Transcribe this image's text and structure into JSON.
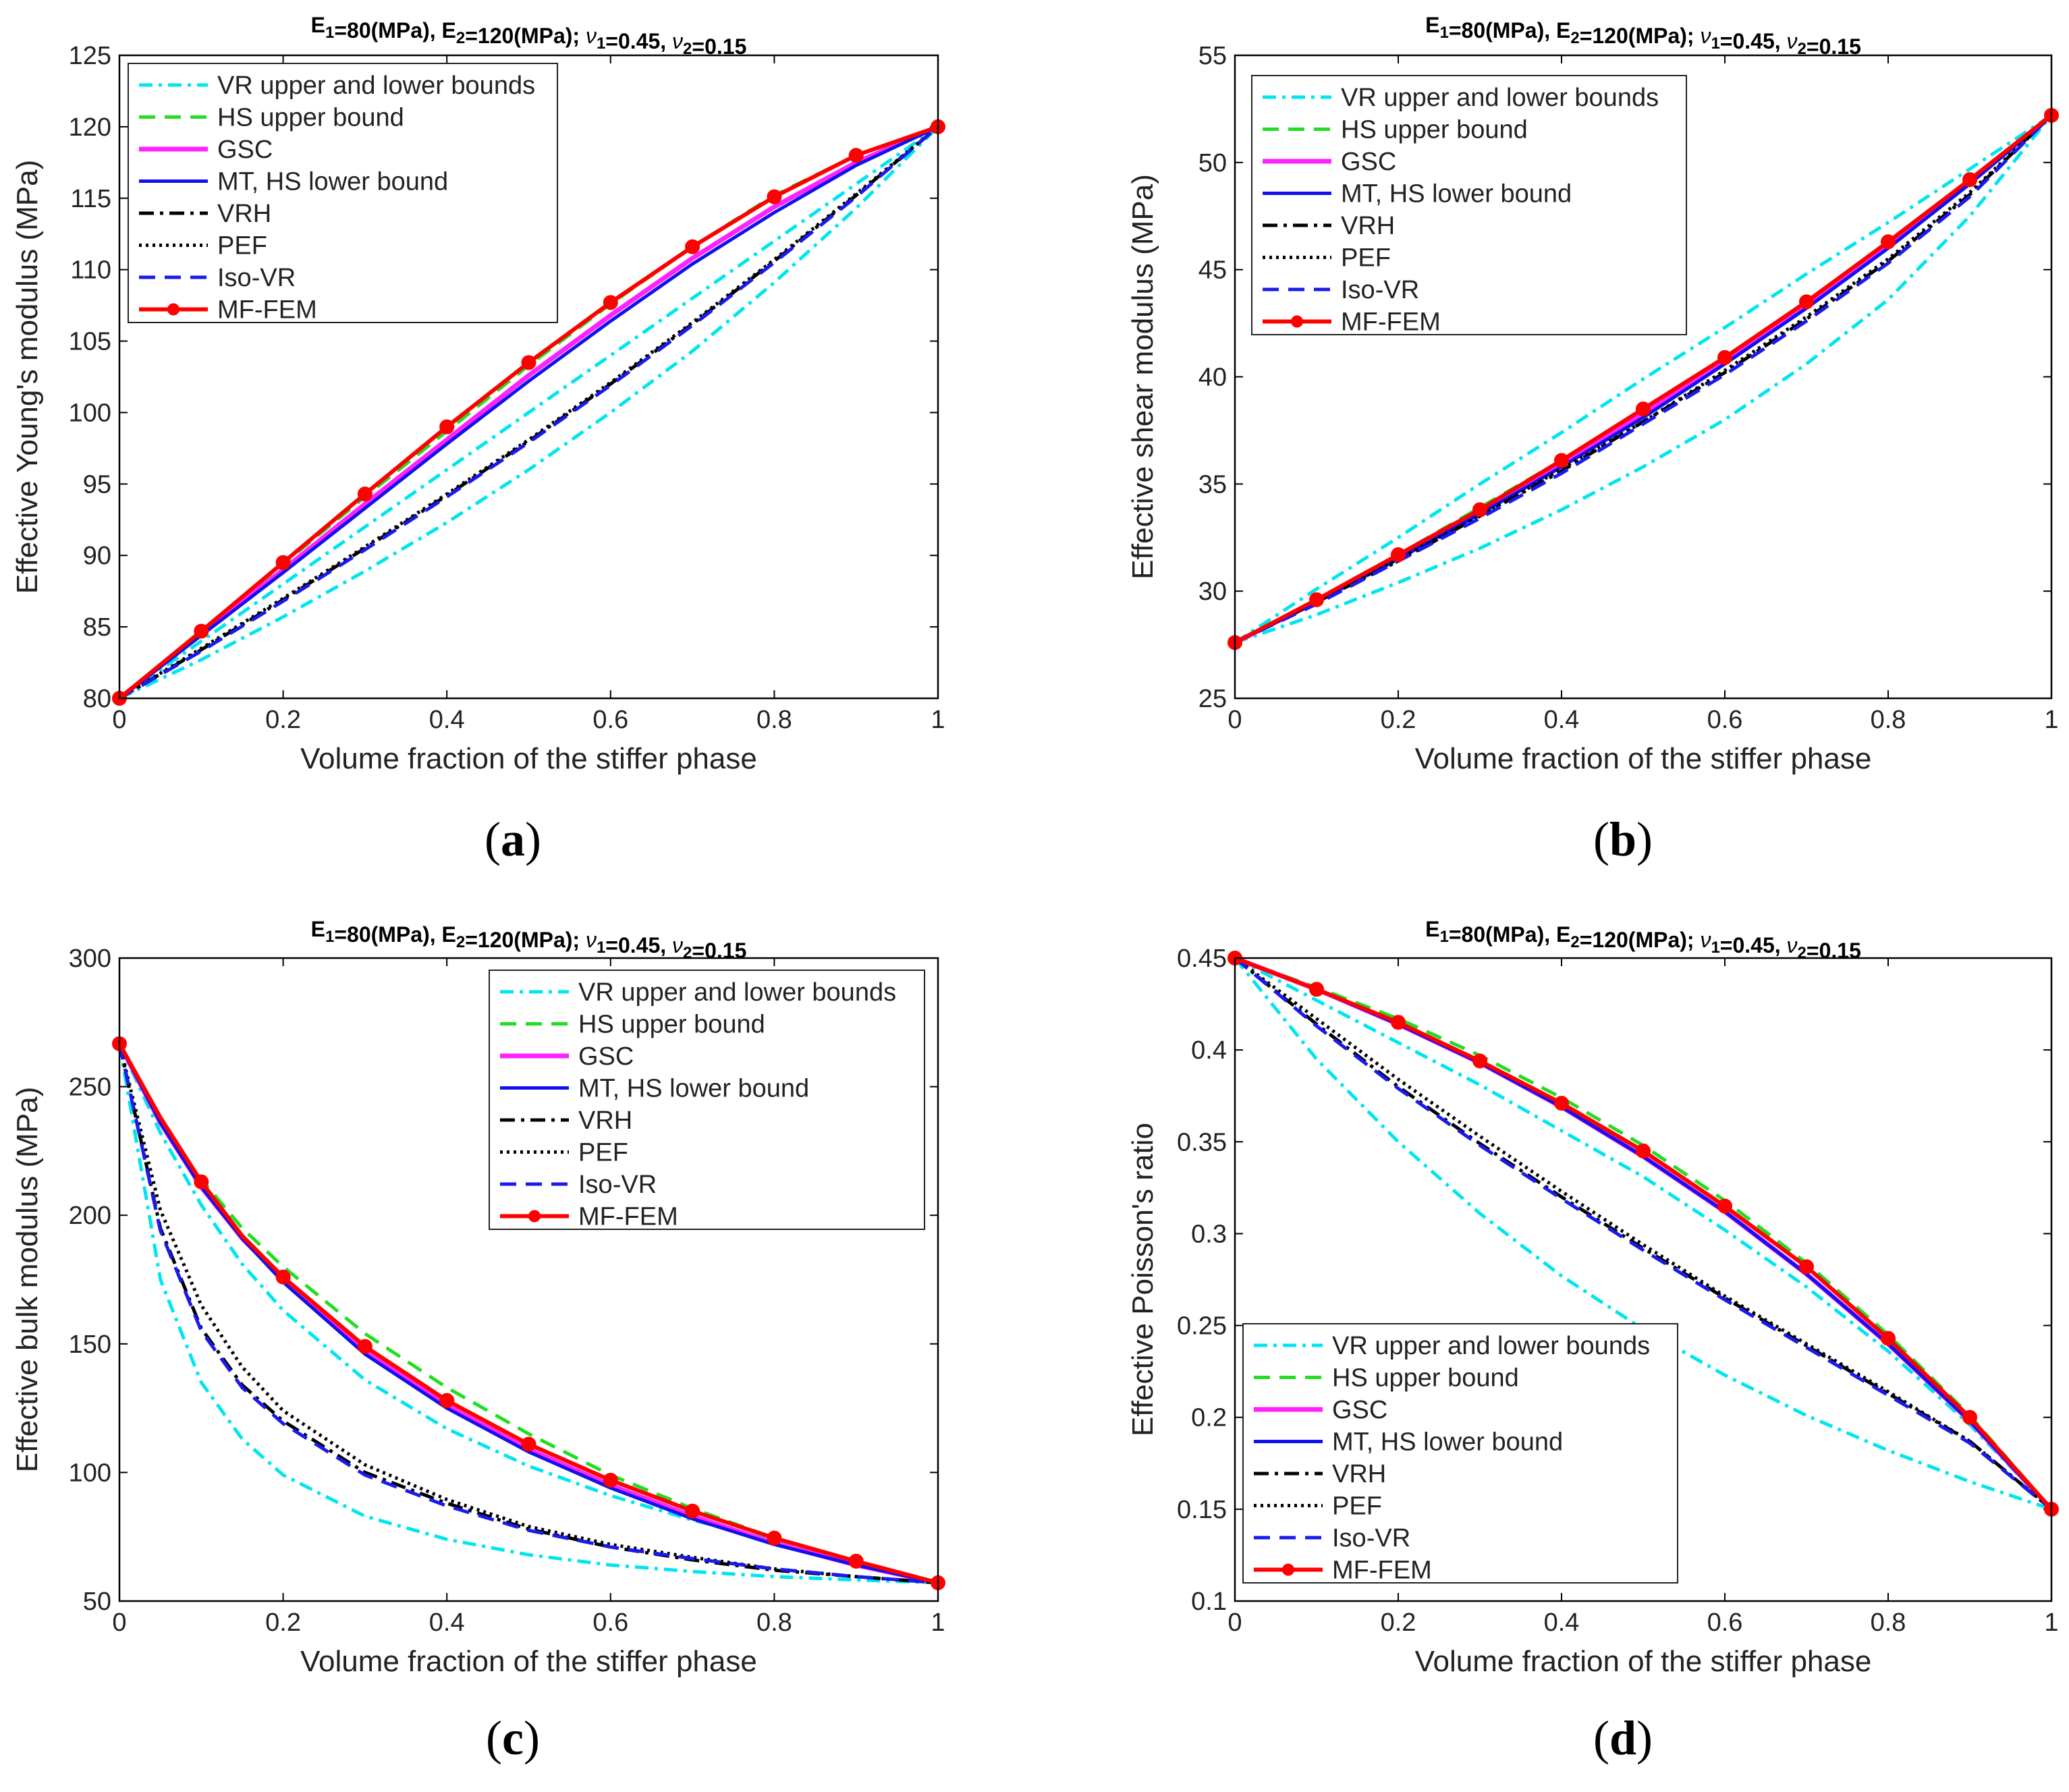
{
  "chart_data": [
    {
      "id": "a",
      "type": "line",
      "title": "E1=80(MPa), E2=120(MPa); ν1=0.45, ν2=0.15",
      "xlabel": "Volume fraction of the stiffer phase",
      "ylabel": "Effective Young's modulus (MPa)",
      "caption_letter": "a",
      "xlim": [
        0,
        1
      ],
      "ylim": [
        80,
        125
      ],
      "xticks": [
        0,
        0.2,
        0.4,
        0.6,
        0.8,
        1
      ],
      "xtick_labels": [
        "0",
        "0.2",
        "0.4",
        "0.6",
        "0.8",
        "1"
      ],
      "yticks": [
        80,
        85,
        90,
        95,
        100,
        105,
        110,
        115,
        120,
        125
      ],
      "ytick_labels": [
        "80",
        "85",
        "90",
        "95",
        "100",
        "105",
        "110",
        "115",
        "120",
        "125"
      ],
      "legend_position": "top-left",
      "x": [
        0,
        0.1,
        0.2,
        0.3,
        0.4,
        0.5,
        0.6,
        0.7,
        0.8,
        0.9,
        1
      ],
      "series": [
        {
          "name": "VR upper and lower bounds",
          "values": [
            80,
            84.0,
            88.0,
            92.0,
            96.0,
            100.0,
            104.0,
            108.0,
            112.0,
            116.0,
            120
          ]
        },
        {
          "name": "",
          "values": [
            80,
            82.7,
            85.7,
            88.9,
            92.3,
            96.0,
            100.0,
            104.3,
            109.1,
            114.3,
            120
          ]
        },
        {
          "name": "HS upper bound",
          "values": [
            80,
            84.7,
            89.4,
            94.1,
            98.7,
            103.3,
            107.6,
            111.6,
            115.2,
            118.0,
            120
          ]
        },
        {
          "name": "GSC",
          "values": [
            80,
            84.5,
            89.0,
            93.6,
            98.1,
            102.6,
            106.8,
            110.8,
            114.4,
            117.5,
            120
          ]
        },
        {
          "name": "MT, HS lower bound",
          "values": [
            80,
            84.4,
            88.8,
            93.3,
            97.8,
            102.2,
            106.4,
            110.4,
            114.0,
            117.3,
            120
          ]
        },
        {
          "name": "VRH",
          "values": [
            80,
            83.4,
            86.9,
            90.5,
            94.2,
            98.0,
            102.0,
            106.2,
            110.6,
            115.2,
            120
          ]
        },
        {
          "name": "PEF",
          "values": [
            80,
            83.5,
            87.0,
            90.6,
            94.3,
            98.1,
            102.1,
            106.3,
            110.7,
            115.3,
            120
          ]
        },
        {
          "name": "Iso-VR",
          "values": [
            80,
            83.3,
            86.8,
            90.4,
            94.1,
            97.9,
            101.9,
            106.1,
            110.5,
            115.1,
            120
          ]
        },
        {
          "name": "MF-FEM",
          "values": [
            80,
            84.7,
            89.5,
            94.3,
            99.0,
            103.5,
            107.7,
            111.6,
            115.1,
            118.0,
            120
          ]
        }
      ]
    },
    {
      "id": "b",
      "type": "line",
      "title": "E1=80(MPa), E2=120(MPa); ν1=0.45, ν2=0.15",
      "xlabel": "Volume fraction of the stiffer phase",
      "ylabel": "Effective shear modulus (MPa)",
      "caption_letter": "b",
      "xlim": [
        0,
        1
      ],
      "ylim": [
        25,
        55
      ],
      "xticks": [
        0,
        0.2,
        0.4,
        0.6,
        0.8,
        1
      ],
      "xtick_labels": [
        "0",
        "0.2",
        "0.4",
        "0.6",
        "0.8",
        "1"
      ],
      "yticks": [
        25,
        30,
        35,
        40,
        45,
        50,
        55
      ],
      "ytick_labels": [
        "25",
        "30",
        "35",
        "40",
        "45",
        "50",
        "55"
      ],
      "legend_position": "top-left",
      "x": [
        0,
        0.1,
        0.2,
        0.3,
        0.4,
        0.5,
        0.6,
        0.7,
        0.8,
        0.9,
        1
      ],
      "series": [
        {
          "name": "VR upper and lower bounds",
          "values": [
            27.6,
            30.1,
            32.5,
            35.0,
            37.4,
            39.9,
            42.3,
            44.8,
            47.2,
            49.7,
            52.2
          ]
        },
        {
          "name": "",
          "values": [
            27.6,
            28.9,
            30.4,
            32.0,
            33.8,
            35.8,
            38.0,
            40.6,
            43.6,
            47.5,
            52.2
          ]
        },
        {
          "name": "HS upper bound",
          "values": [
            27.6,
            29.6,
            31.7,
            33.9,
            36.1,
            38.4,
            40.9,
            43.5,
            46.3,
            49.2,
            52.2
          ]
        },
        {
          "name": "GSC",
          "values": [
            27.6,
            29.5,
            31.6,
            33.7,
            35.9,
            38.3,
            40.7,
            43.3,
            46.1,
            49.1,
            52.2
          ]
        },
        {
          "name": "MT, HS lower bound",
          "values": [
            27.6,
            29.5,
            31.5,
            33.6,
            35.8,
            38.1,
            40.6,
            43.2,
            46.0,
            49.0,
            52.2
          ]
        },
        {
          "name": "VRH",
          "values": [
            27.6,
            29.5,
            31.4,
            33.5,
            35.6,
            37.9,
            40.2,
            42.7,
            45.4,
            48.5,
            52.2
          ]
        },
        {
          "name": "PEF",
          "values": [
            27.6,
            29.5,
            31.5,
            33.5,
            35.7,
            37.9,
            40.3,
            42.8,
            45.5,
            48.6,
            52.2
          ]
        },
        {
          "name": "Iso-VR",
          "values": [
            27.6,
            29.4,
            31.4,
            33.4,
            35.5,
            37.8,
            40.1,
            42.6,
            45.3,
            48.4,
            52.2
          ]
        },
        {
          "name": "MF-FEM",
          "values": [
            27.6,
            29.6,
            31.7,
            33.8,
            36.1,
            38.5,
            40.9,
            43.5,
            46.3,
            49.2,
            52.2
          ]
        }
      ]
    },
    {
      "id": "c",
      "type": "line",
      "title": "E1=80(MPa), E2=120(MPa); ν1=0.45, ν2=0.15",
      "xlabel": "Volume fraction of the stiffer phase",
      "ylabel": "Effective bulk modulus (MPa)",
      "caption_letter": "c",
      "xlim": [
        0,
        1
      ],
      "ylim": [
        50,
        300
      ],
      "xticks": [
        0,
        0.2,
        0.4,
        0.6,
        0.8,
        1
      ],
      "xtick_labels": [
        "0",
        "0.2",
        "0.4",
        "0.6",
        "0.8",
        "1"
      ],
      "yticks": [
        50,
        100,
        150,
        200,
        250,
        300
      ],
      "ytick_labels": [
        "50",
        "100",
        "150",
        "200",
        "250",
        "300"
      ],
      "legend_position": "top-right",
      "x": [
        0,
        0.05,
        0.1,
        0.15,
        0.2,
        0.3,
        0.4,
        0.5,
        0.6,
        0.7,
        0.8,
        0.9,
        1
      ],
      "series": [
        {
          "name": "VR upper and lower bounds",
          "values": [
            266.7,
            232,
            204,
            181,
            163,
            136,
            117,
            102.5,
            91,
            81.5,
            73.5,
            65,
            57.1
          ]
        },
        {
          "name": "",
          "values": [
            266.7,
            175,
            135,
            113,
            99,
            83,
            74,
            68,
            64,
            61.5,
            59.5,
            58.2,
            57.1
          ]
        },
        {
          "name": "HS upper bound",
          "values": [
            266.7,
            236,
            214,
            195,
            180,
            154,
            133,
            115,
            99,
            86,
            74.5,
            65,
            57.1
          ]
        },
        {
          "name": "GSC",
          "values": [
            266.7,
            236,
            211,
            191,
            175,
            147,
            126,
            109,
            95,
            83,
            72.5,
            64,
            57.1
          ]
        },
        {
          "name": "MT, HS lower bound",
          "values": [
            266.7,
            236,
            211,
            191,
            174,
            146,
            125,
            108,
            94,
            82,
            72,
            64,
            57.1
          ]
        },
        {
          "name": "VRH",
          "values": [
            266.7,
            195,
            156,
            134,
            120,
            100,
            88,
            78,
            71,
            66,
            62,
            59.5,
            57.1
          ]
        },
        {
          "name": "PEF",
          "values": [
            266.7,
            202,
            165,
            141,
            124,
            103,
            89.5,
            79,
            72,
            67,
            62.5,
            59.5,
            57.1
          ]
        },
        {
          "name": "Iso-VR",
          "values": [
            266.7,
            194,
            155,
            133,
            119,
            99,
            87,
            77.5,
            71,
            66.5,
            62.5,
            59.5,
            57.1
          ]
        },
        {
          "name": "MF-FEM",
          "values": [
            266.7,
            238,
            213,
            192,
            176,
            149,
            128,
            111,
            97,
            85,
            74.5,
            65.5,
            57.1
          ]
        }
      ],
      "markers_x": [
        0,
        0.1,
        0.2,
        0.3,
        0.4,
        0.5,
        0.6,
        0.7,
        0.8,
        0.9,
        1
      ]
    },
    {
      "id": "d",
      "type": "line",
      "title": "E1=80(MPa), E2=120(MPa); ν1=0.45, ν2=0.15",
      "xlabel": "Volume fraction of the stiffer phase",
      "ylabel": "Effective Poisson's ratio",
      "caption_letter": "d",
      "xlim": [
        0,
        1
      ],
      "ylim": [
        0.1,
        0.45
      ],
      "xticks": [
        0,
        0.2,
        0.4,
        0.6,
        0.8,
        1
      ],
      "xtick_labels": [
        "0",
        "0.2",
        "0.4",
        "0.6",
        "0.8",
        "1"
      ],
      "yticks": [
        0.1,
        0.15,
        0.2,
        0.25,
        0.3,
        0.35,
        0.4,
        0.45
      ],
      "ytick_labels": [
        "0.1",
        "0.15",
        "0.2",
        "0.25",
        "0.3",
        "0.35",
        "0.4",
        "0.45"
      ],
      "legend_position": "bottom-left",
      "x": [
        0,
        0.1,
        0.2,
        0.3,
        0.4,
        0.5,
        0.6,
        0.7,
        0.8,
        0.9,
        1
      ],
      "series": [
        {
          "name": "VR upper and lower bounds",
          "values": [
            0.45,
            0.427,
            0.404,
            0.381,
            0.356,
            0.331,
            0.302,
            0.271,
            0.236,
            0.196,
            0.15
          ]
        },
        {
          "name": "",
          "values": [
            0.45,
            0.395,
            0.35,
            0.311,
            0.277,
            0.248,
            0.223,
            0.201,
            0.182,
            0.165,
            0.15
          ]
        },
        {
          "name": "HS upper bound",
          "values": [
            0.45,
            0.434,
            0.417,
            0.397,
            0.374,
            0.348,
            0.318,
            0.284,
            0.245,
            0.201,
            0.15
          ]
        },
        {
          "name": "GSC",
          "values": [
            0.45,
            0.433,
            0.414,
            0.393,
            0.369,
            0.342,
            0.312,
            0.278,
            0.24,
            0.198,
            0.15
          ]
        },
        {
          "name": "MT, HS lower bound",
          "values": [
            0.45,
            0.433,
            0.414,
            0.393,
            0.369,
            0.342,
            0.312,
            0.278,
            0.24,
            0.198,
            0.15
          ]
        },
        {
          "name": "VRH",
          "values": [
            0.45,
            0.414,
            0.38,
            0.349,
            0.32,
            0.292,
            0.265,
            0.239,
            0.213,
            0.187,
            0.15
          ]
        },
        {
          "name": "PEF",
          "values": [
            0.45,
            0.417,
            0.384,
            0.353,
            0.323,
            0.294,
            0.266,
            0.24,
            0.214,
            0.187,
            0.15
          ]
        },
        {
          "name": "Iso-VR",
          "values": [
            0.45,
            0.413,
            0.379,
            0.348,
            0.319,
            0.291,
            0.264,
            0.238,
            0.212,
            0.186,
            0.15
          ]
        },
        {
          "name": "MF-FEM",
          "values": [
            0.45,
            0.433,
            0.415,
            0.394,
            0.371,
            0.345,
            0.315,
            0.282,
            0.243,
            0.2,
            0.15
          ]
        }
      ]
    }
  ],
  "styles": {
    "VR": "#00e5ee",
    "HS": "#22dd22",
    "GSC": "#ff22ff",
    "MT": "#1111ee",
    "VRH": "#000000",
    "PEF": "#000000",
    "IsoVR": "#1a1aee",
    "MF": "#ff0000"
  }
}
